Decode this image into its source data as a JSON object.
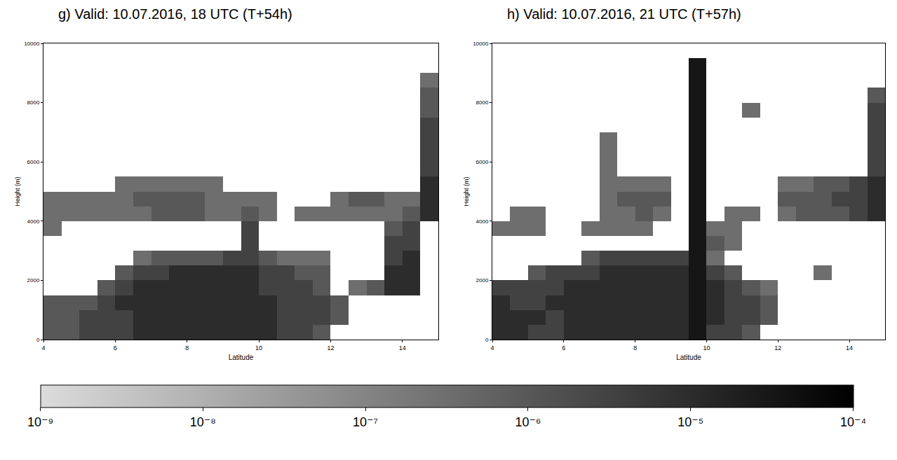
{
  "chart_data": {
    "type": "heatmap",
    "x_label": "Latitude",
    "y_label": "Height (m)",
    "xlim": [
      4,
      15
    ],
    "xticks": [
      4,
      6,
      8,
      10,
      12,
      14
    ],
    "ylim": [
      0,
      10000
    ],
    "yticks": [
      0,
      2000,
      4000,
      6000,
      8000,
      10000
    ],
    "x": [
      4.25,
      4.75,
      5.25,
      5.75,
      6.25,
      6.75,
      7.25,
      7.75,
      8.25,
      8.75,
      9.25,
      9.75,
      10.25,
      10.75,
      11.25,
      11.75,
      12.25,
      12.75,
      13.25,
      13.75,
      14.25,
      14.75
    ],
    "y": [
      250,
      750,
      1250,
      1750,
      2250,
      2750,
      3250,
      3750,
      4250,
      4750,
      5250,
      5750,
      6250,
      6750,
      7250,
      7750,
      8250,
      8750,
      9250,
      9750
    ],
    "panels": [
      {
        "title": "g) Valid: 10.07.2016, 18 UTC (T+54h)",
        "cells": [
          [
            -6,
            -6,
            -5.5,
            -5.5,
            -5.5,
            -5,
            -5,
            -5,
            -5,
            -5,
            -5,
            -5,
            -5,
            -5.5,
            -5.5,
            -6,
            null,
            null,
            null,
            null,
            null,
            null
          ],
          [
            -6,
            -6,
            -5.5,
            -5.5,
            -5.5,
            -5,
            -5,
            -5,
            -5,
            -5,
            -5,
            -5,
            -5,
            -5.5,
            -5.5,
            -5.5,
            -6,
            null,
            null,
            null,
            null,
            null
          ],
          [
            -6,
            -6,
            -6,
            -5.5,
            -5,
            -5,
            -5,
            -5,
            -5,
            -5,
            -5,
            -5,
            -5,
            -5.5,
            -5.5,
            -5.5,
            -6,
            null,
            null,
            null,
            null,
            null
          ],
          [
            null,
            null,
            null,
            -6,
            -5.5,
            -5,
            -5,
            -5,
            -5,
            -5,
            -5,
            -5,
            -5.5,
            -5.5,
            -5.5,
            -6,
            null,
            -6.5,
            -6,
            -5,
            -5,
            null
          ],
          [
            null,
            null,
            null,
            null,
            -6,
            -5.5,
            -5.5,
            -5,
            -5,
            -5,
            -5,
            -5,
            -5.5,
            -5.5,
            -6,
            -6,
            null,
            null,
            null,
            -5,
            -5,
            null
          ],
          [
            null,
            null,
            null,
            null,
            null,
            -6.5,
            -6,
            -6,
            -6,
            -6,
            -5.5,
            -5.5,
            -6,
            -6.5,
            -6.5,
            -6.5,
            null,
            null,
            null,
            -5.5,
            -5,
            null
          ],
          [
            null,
            null,
            null,
            null,
            null,
            null,
            null,
            null,
            null,
            null,
            null,
            -5.5,
            null,
            null,
            null,
            null,
            null,
            null,
            null,
            -5.5,
            -5.5,
            null
          ],
          [
            -6.5,
            null,
            null,
            null,
            null,
            null,
            null,
            null,
            null,
            null,
            null,
            -5.5,
            null,
            null,
            null,
            null,
            null,
            null,
            null,
            -6,
            -5.5,
            null
          ],
          [
            -6.5,
            -6.5,
            -6.5,
            -6.5,
            -6.5,
            -6.5,
            -6,
            -6,
            -6,
            -6.5,
            -6.5,
            -6,
            -6.5,
            null,
            -6.5,
            -6.5,
            -6.5,
            -6.5,
            -6.5,
            -6.5,
            -6,
            -5
          ],
          [
            -6.5,
            -6.5,
            -6.5,
            -6.5,
            -6.5,
            -6,
            -6,
            -6,
            -6,
            -6.5,
            -6.5,
            -6.5,
            -6.5,
            null,
            null,
            null,
            -6.5,
            -6,
            -6,
            -6.5,
            -6.5,
            -5
          ],
          [
            null,
            null,
            null,
            null,
            -6.5,
            -6.5,
            -6.5,
            -6.5,
            -6.5,
            -6.5,
            null,
            null,
            null,
            null,
            null,
            null,
            null,
            null,
            null,
            null,
            null,
            -5
          ],
          [
            null,
            null,
            null,
            null,
            null,
            null,
            null,
            null,
            null,
            null,
            null,
            null,
            null,
            null,
            null,
            null,
            null,
            null,
            null,
            null,
            null,
            -5.5
          ],
          [
            null,
            null,
            null,
            null,
            null,
            null,
            null,
            null,
            null,
            null,
            null,
            null,
            null,
            null,
            null,
            null,
            null,
            null,
            null,
            null,
            null,
            -5.5
          ],
          [
            null,
            null,
            null,
            null,
            null,
            null,
            null,
            null,
            null,
            null,
            null,
            null,
            null,
            null,
            null,
            null,
            null,
            null,
            null,
            null,
            null,
            -5.5
          ],
          [
            null,
            null,
            null,
            null,
            null,
            null,
            null,
            null,
            null,
            null,
            null,
            null,
            null,
            null,
            null,
            null,
            null,
            null,
            null,
            null,
            null,
            -5.5
          ],
          [
            null,
            null,
            null,
            null,
            null,
            null,
            null,
            null,
            null,
            null,
            null,
            null,
            null,
            null,
            null,
            null,
            null,
            null,
            null,
            null,
            null,
            -6
          ],
          [
            null,
            null,
            null,
            null,
            null,
            null,
            null,
            null,
            null,
            null,
            null,
            null,
            null,
            null,
            null,
            null,
            null,
            null,
            null,
            null,
            null,
            -6
          ],
          [
            null,
            null,
            null,
            null,
            null,
            null,
            null,
            null,
            null,
            null,
            null,
            null,
            null,
            null,
            null,
            null,
            null,
            null,
            null,
            null,
            null,
            -6.5
          ],
          [
            null,
            null,
            null,
            null,
            null,
            null,
            null,
            null,
            null,
            null,
            null,
            null,
            null,
            null,
            null,
            null,
            null,
            null,
            null,
            null,
            null,
            null
          ],
          [
            null,
            null,
            null,
            null,
            null,
            null,
            null,
            null,
            null,
            null,
            null,
            null,
            null,
            null,
            null,
            null,
            null,
            null,
            null,
            null,
            null,
            null
          ]
        ]
      },
      {
        "title": "h) Valid: 10.07.2016, 21 UTC (T+57h)",
        "cells": [
          [
            -5,
            -5,
            -5.5,
            -5.5,
            -5,
            -5,
            -5,
            -5,
            -5,
            -5,
            -5,
            -4.5,
            -5.5,
            -5.5,
            -6,
            null,
            null,
            null,
            null,
            null,
            null,
            null
          ],
          [
            -5,
            -5,
            -5,
            -5.5,
            -5,
            -5,
            -5,
            -5,
            -5,
            -5,
            -5,
            -4.5,
            -5,
            -5.5,
            -5.5,
            -6,
            null,
            null,
            null,
            null,
            null,
            null
          ],
          [
            -5,
            -5.5,
            -5.5,
            -5,
            -5,
            -5,
            -5,
            -5,
            -5,
            -5,
            -5,
            -4.5,
            -5,
            -5.5,
            -5.5,
            -6,
            null,
            null,
            null,
            null,
            null,
            null
          ],
          [
            -5.5,
            -5.5,
            -5.5,
            -5.5,
            -5,
            -5,
            -5,
            -5,
            -5,
            -5,
            -5,
            -4.5,
            -5,
            -5.5,
            -6,
            -6.5,
            null,
            null,
            null,
            null,
            null,
            null
          ],
          [
            null,
            null,
            -6,
            -5.5,
            -5.5,
            -5.5,
            -5,
            -5,
            -5,
            -5,
            -5,
            -4.5,
            -5.5,
            -6,
            null,
            null,
            null,
            null,
            -6.5,
            null,
            null,
            null
          ],
          [
            null,
            null,
            null,
            null,
            null,
            -6,
            -5.5,
            -5.5,
            -5.5,
            -5.5,
            -5.5,
            -4.5,
            -6.5,
            null,
            null,
            null,
            null,
            null,
            null,
            null,
            null,
            null
          ],
          [
            null,
            null,
            null,
            null,
            null,
            null,
            null,
            null,
            null,
            null,
            null,
            -4.5,
            -6,
            -6.5,
            null,
            null,
            null,
            null,
            null,
            null,
            null,
            null
          ],
          [
            -6.5,
            -6.5,
            -6.5,
            null,
            null,
            -6.5,
            -6.5,
            -6.5,
            -6.5,
            null,
            null,
            -4.5,
            -6.5,
            -6.5,
            null,
            null,
            null,
            null,
            null,
            null,
            null,
            null
          ],
          [
            null,
            -6.5,
            -6.5,
            null,
            null,
            null,
            -6.5,
            -6.5,
            -6,
            -6.5,
            null,
            -4.5,
            null,
            -6.5,
            -6.5,
            null,
            -6.5,
            -6,
            -6,
            -6,
            -5.5,
            -5
          ],
          [
            null,
            null,
            null,
            null,
            null,
            null,
            -6.5,
            -6,
            -6,
            -6,
            null,
            -4.5,
            null,
            null,
            null,
            null,
            -6,
            -6,
            -6,
            -5.5,
            -5.5,
            -5
          ],
          [
            null,
            null,
            null,
            null,
            null,
            null,
            -6.5,
            -6.5,
            -6.5,
            -6.5,
            null,
            -4.5,
            null,
            null,
            null,
            null,
            -6.5,
            -6.5,
            -6,
            -6,
            -5.5,
            -5
          ],
          [
            null,
            null,
            null,
            null,
            null,
            null,
            -6.5,
            null,
            null,
            null,
            null,
            -4.5,
            null,
            null,
            null,
            null,
            null,
            null,
            null,
            null,
            null,
            -5.5
          ],
          [
            null,
            null,
            null,
            null,
            null,
            null,
            -6.5,
            null,
            null,
            null,
            null,
            -4.5,
            null,
            null,
            null,
            null,
            null,
            null,
            null,
            null,
            null,
            -5.5
          ],
          [
            null,
            null,
            null,
            null,
            null,
            null,
            -6.5,
            null,
            null,
            null,
            null,
            -4.5,
            null,
            null,
            null,
            null,
            null,
            null,
            null,
            null,
            null,
            -5.5
          ],
          [
            null,
            null,
            null,
            null,
            null,
            null,
            null,
            null,
            null,
            null,
            null,
            -4.5,
            null,
            null,
            null,
            null,
            null,
            null,
            null,
            null,
            null,
            -5.5
          ],
          [
            null,
            null,
            null,
            null,
            null,
            null,
            null,
            null,
            null,
            null,
            null,
            -4.5,
            null,
            null,
            -6.5,
            null,
            null,
            null,
            null,
            null,
            null,
            -5.5
          ],
          [
            null,
            null,
            null,
            null,
            null,
            null,
            null,
            null,
            null,
            null,
            null,
            -4.5,
            null,
            null,
            null,
            null,
            null,
            null,
            null,
            null,
            null,
            -6
          ],
          [
            null,
            null,
            null,
            null,
            null,
            null,
            null,
            null,
            null,
            null,
            null,
            -4.5,
            null,
            null,
            null,
            null,
            null,
            null,
            null,
            null,
            null,
            null
          ],
          [
            null,
            null,
            null,
            null,
            null,
            null,
            null,
            null,
            null,
            null,
            null,
            -4.5,
            null,
            null,
            null,
            null,
            null,
            null,
            null,
            null,
            null,
            null
          ],
          [
            null,
            null,
            null,
            null,
            null,
            null,
            null,
            null,
            null,
            null,
            null,
            null,
            null,
            null,
            null,
            null,
            null,
            null,
            null,
            null,
            null,
            null
          ]
        ]
      }
    ],
    "colorbar": {
      "range": [
        -9,
        -4
      ],
      "ticks": [
        {
          "value": -9,
          "label": "10⁻⁹"
        },
        {
          "value": -8,
          "label": "10⁻⁸"
        },
        {
          "value": -7,
          "label": "10⁻⁷"
        },
        {
          "value": -6,
          "label": "10⁻⁶"
        },
        {
          "value": -5,
          "label": "10⁻⁵"
        },
        {
          "value": -4,
          "label": "10⁻⁴"
        }
      ]
    }
  }
}
